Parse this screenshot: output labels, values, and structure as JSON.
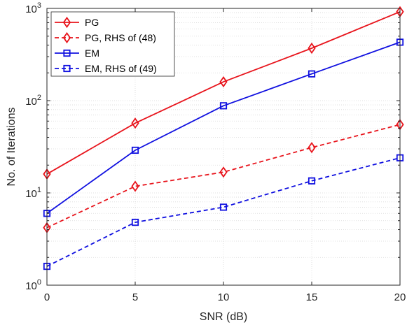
{
  "chart_data": {
    "type": "line",
    "title": "",
    "xlabel": "SNR (dB)",
    "ylabel": "No. of Iterations",
    "x": [
      0,
      5,
      10,
      15,
      20
    ],
    "xlim": [
      0,
      20
    ],
    "ylim": [
      1,
      1000
    ],
    "yscale": "log",
    "x_ticks": [
      "0",
      "5",
      "10",
      "15",
      "20"
    ],
    "y_ticks": [
      {
        "base": "10",
        "exp": "0"
      },
      {
        "base": "10",
        "exp": "1"
      },
      {
        "base": "10",
        "exp": "2"
      },
      {
        "base": "10",
        "exp": "3"
      }
    ],
    "grid": true,
    "legend_position": "top-left",
    "series": [
      {
        "name": "PG",
        "values": [
          16,
          57,
          160,
          370,
          920
        ],
        "color": "#e8141c",
        "dashed": false,
        "marker": "diamond"
      },
      {
        "name": "PG, RHS of (48)",
        "values": [
          4.2,
          11.8,
          16.8,
          31,
          55
        ],
        "color": "#e8141c",
        "dashed": true,
        "marker": "diamond"
      },
      {
        "name": "EM",
        "values": [
          6,
          29,
          88,
          195,
          430
        ],
        "color": "#1010e0",
        "dashed": false,
        "marker": "square"
      },
      {
        "name": "EM, RHS of (49)",
        "values": [
          1.6,
          4.8,
          7,
          13.5,
          24
        ],
        "color": "#1010e0",
        "dashed": true,
        "marker": "square"
      }
    ]
  }
}
